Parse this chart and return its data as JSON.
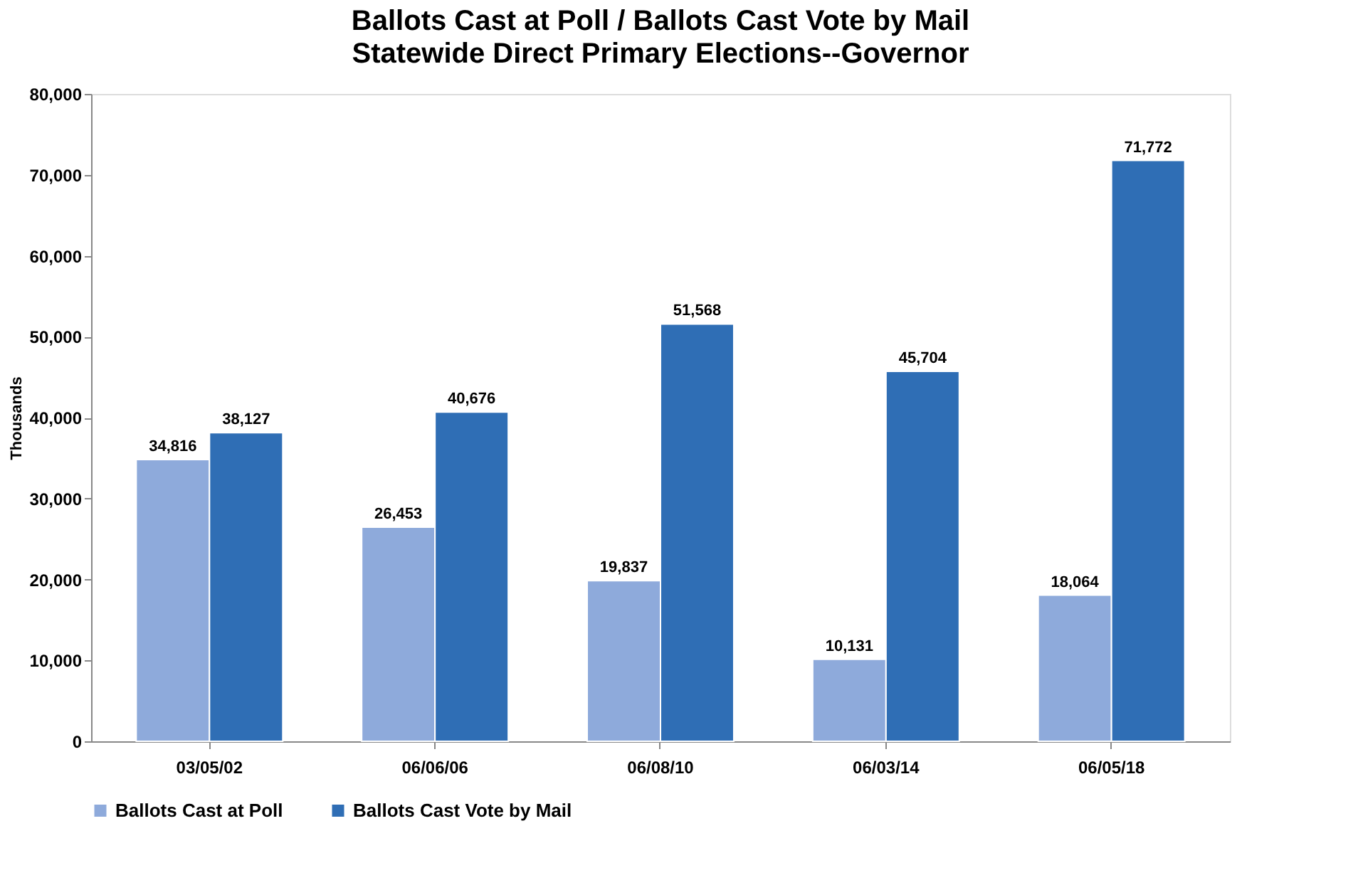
{
  "chart_data": {
    "type": "bar",
    "title": "Ballots Cast at Poll / Ballots Cast Vote by Mail",
    "subtitle": "Statewide Direct Primary Elections--Governor",
    "ylabel": "Thousands",
    "categories": [
      "03/05/02",
      "06/06/06",
      "06/08/10",
      "06/03/14",
      "06/05/18"
    ],
    "series": [
      {
        "name": "Ballots Cast at Poll",
        "color": "#8eaadb",
        "values": [
          34816,
          26453,
          19837,
          10131,
          18064
        ],
        "value_labels": [
          "34,816",
          "26,453",
          "19,837",
          "10,131",
          "18,064"
        ]
      },
      {
        "name": "Ballots Cast Vote by Mail",
        "color": "#2f6eb5",
        "values": [
          38127,
          40676,
          51568,
          45704,
          71772
        ],
        "value_labels": [
          "38,127",
          "40,676",
          "51,568",
          "45,704",
          "71,772"
        ]
      }
    ],
    "ylim": [
      0,
      80000
    ],
    "yticks": [
      0,
      {
        "value": 10000,
        "label": "10,000"
      },
      {
        "value": 20000,
        "label": "20,000"
      },
      {
        "value": 30000,
        "label": "30,000"
      },
      {
        "value": 40000,
        "label": "40,000"
      },
      {
        "value": 50000,
        "label": "50,000"
      },
      {
        "value": 60000,
        "label": "60,000"
      },
      {
        "value": 70000,
        "label": "70,000"
      },
      {
        "value": 80000,
        "label": "80,000"
      }
    ],
    "legend": "bottom"
  }
}
